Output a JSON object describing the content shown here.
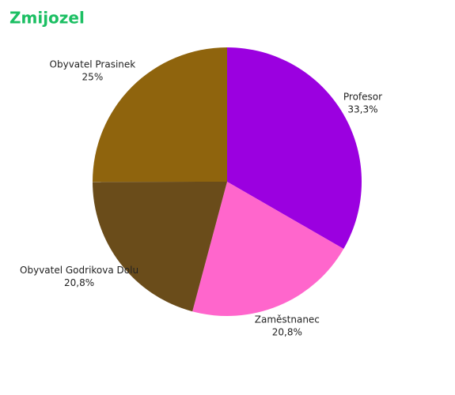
{
  "chart_data": {
    "type": "pie",
    "title": "Zmijozel",
    "categories": [
      "Profesor",
      "Zaměstnanec",
      "Obyvatel Godrikova Dolu",
      "Obyvatel Prasinek"
    ],
    "values": [
      33.3,
      20.8,
      20.8,
      25
    ],
    "value_labels": [
      "33,3%",
      "20,8%",
      "20,8%",
      "25%"
    ],
    "colors": [
      "#9b00e0",
      "#ff66cc",
      "#6a4c1a",
      "#8f640d"
    ]
  }
}
